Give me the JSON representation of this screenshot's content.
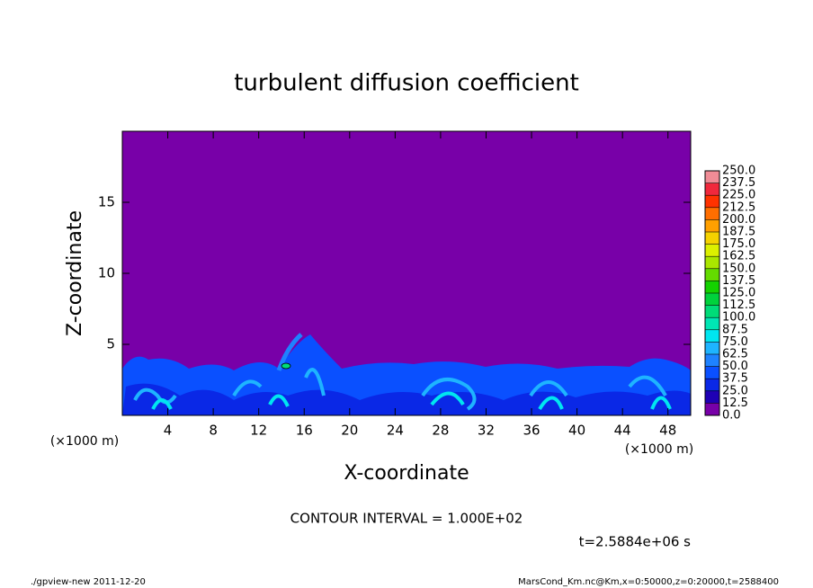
{
  "chart_data": {
    "type": "contour",
    "title": "turbulent diffusion coefficient",
    "x_label": "X-coordinate",
    "y_label": "Z-coordinate",
    "x_unit_left": "(×1000 m)",
    "x_unit_right": "(×1000 m)",
    "contour_interval": "CONTOUR INTERVAL = 1.000E+02",
    "time_label": "t=2.5884e+06 s",
    "footer_left": "./gpview-new  2011-12-20",
    "footer_right": "MarsCond_Km.nc@Km,x=0:50000,z=0:20000,t=2588400",
    "xlim": [
      0,
      50
    ],
    "xticks": [
      4,
      8,
      12,
      16,
      20,
      24,
      28,
      32,
      36,
      40,
      44,
      48
    ],
    "ylim": [
      0,
      20
    ],
    "yticks": [
      5,
      10,
      15
    ],
    "colorbar": {
      "levels": [
        {
          "value": 0,
          "label": "0.0"
        },
        {
          "value": 12.5,
          "label": "12.5"
        },
        {
          "value": 25,
          "label": "25.0"
        },
        {
          "value": 37.5,
          "label": "37.5"
        },
        {
          "value": 50,
          "label": "50.0"
        },
        {
          "value": 62.5,
          "label": "62.5"
        },
        {
          "value": 75,
          "label": "75.0"
        },
        {
          "value": 87.5,
          "label": "87.5"
        },
        {
          "value": 100,
          "label": "100.0"
        },
        {
          "value": 112.5,
          "label": "112.5"
        },
        {
          "value": 125,
          "label": "125.0"
        },
        {
          "value": 137.5,
          "label": "137.5"
        },
        {
          "value": 150,
          "label": "150.0"
        },
        {
          "value": 162.5,
          "label": "162.5"
        },
        {
          "value": 175,
          "label": "175.0"
        },
        {
          "value": 187.5,
          "label": "187.5"
        },
        {
          "value": 200,
          "label": "200.0"
        },
        {
          "value": 212.5,
          "label": "212.5"
        },
        {
          "value": 225,
          "label": "225.0"
        },
        {
          "value": 237.5,
          "label": "237.5"
        },
        {
          "value": 250,
          "label": "250.0"
        }
      ],
      "colors": [
        "#7800a8",
        "#1e00b4",
        "#0a28e6",
        "#0a50ff",
        "#1e82ff",
        "#1eb4ff",
        "#00e6f0",
        "#00e6b4",
        "#00dc78",
        "#00d23c",
        "#14d200",
        "#64dc00",
        "#aae600",
        "#dcf000",
        "#f5d200",
        "#ffa000",
        "#ff6e00",
        "#ff3200",
        "#f0283c",
        "#f08c96"
      ]
    }
  }
}
